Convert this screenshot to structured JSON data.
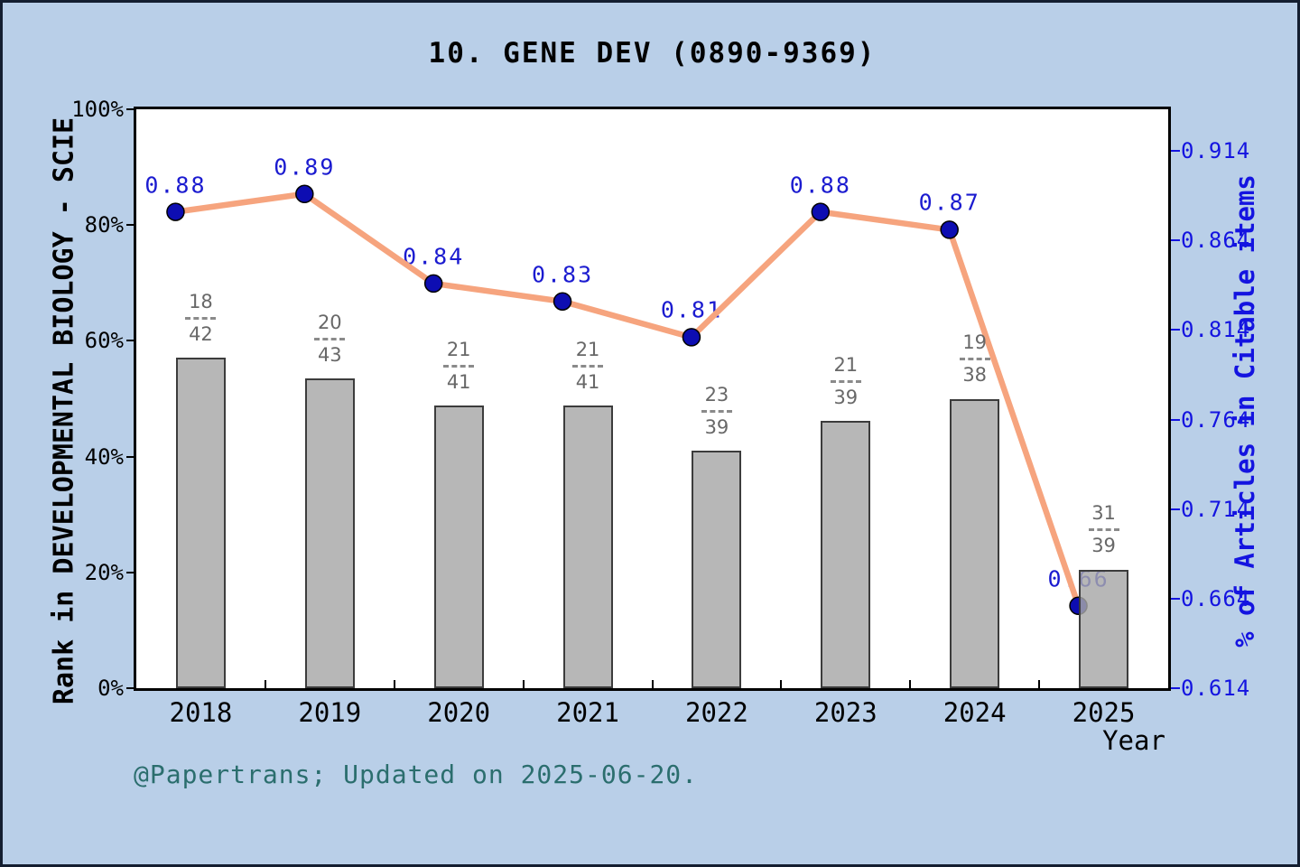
{
  "title": "10. GENE DEV (0890-9369)",
  "footer_credit": "@Papertrans; Updated on 2025-06-20.",
  "colors": {
    "background": "#b9cfe8",
    "outer_border": "#141e30",
    "plot_background": "#ffffff",
    "bar_fill": "#b0b0b0",
    "bar_border": "#3c3c3c",
    "line": "#f6a47e",
    "marker": "#0d0db2",
    "marker_edge": "#000000",
    "point_label_text": "#1b1bd0",
    "right_axis_text": "#1414e0",
    "fraction_text": "#686868",
    "footer_text": "#2b6e6e",
    "title_text": "#000000"
  },
  "chart_data": {
    "type": "bar",
    "subtype": "bar-line-combo",
    "title": "10. GENE DEV (0890-9369)",
    "categories": [
      "2018",
      "2019",
      "2020",
      "2021",
      "2022",
      "2023",
      "2024",
      "2025"
    ],
    "series": [
      {
        "name": "Rank in DEVELOPMENTAL BIOLOGY - SCIE",
        "type": "bar",
        "axis": "left",
        "values_percent": [
          57.14,
          53.49,
          48.78,
          48.78,
          41.03,
          46.15,
          50.0,
          20.51
        ],
        "fraction_labels": [
          {
            "numerator": "18",
            "denominator": "42"
          },
          {
            "numerator": "20",
            "denominator": "43"
          },
          {
            "numerator": "21",
            "denominator": "41"
          },
          {
            "numerator": "21",
            "denominator": "41"
          },
          {
            "numerator": "23",
            "denominator": "39"
          },
          {
            "numerator": "21",
            "denominator": "39"
          },
          {
            "numerator": "19",
            "denominator": "38"
          },
          {
            "numerator": "31",
            "denominator": "39"
          }
        ]
      },
      {
        "name": "% of Articles in Citable items",
        "type": "line",
        "axis": "right",
        "values": [
          0.88,
          0.89,
          0.84,
          0.83,
          0.81,
          0.88,
          0.87,
          0.66
        ],
        "point_labels": [
          "0.88",
          "0.89",
          "0.84",
          "0.83",
          "0.81",
          "0.88",
          "0.87",
          "0.66"
        ]
      }
    ],
    "left_axis": {
      "label": "Rank in DEVELOPMENTAL BIOLOGY - SCIE",
      "ticks": [
        "0%",
        "20%",
        "40%",
        "60%",
        "80%",
        "100%"
      ],
      "min": 0,
      "max": 100
    },
    "right_axis": {
      "label": "% of Articles in Citable items",
      "ticks": [
        "0.614",
        "0.664",
        "0.714",
        "0.764",
        "0.814",
        "0.864",
        "0.914"
      ],
      "min": 0.614,
      "max": 0.9373
    },
    "x_axis": {
      "label": "Year",
      "ticks": [
        "2018",
        "2019",
        "2020",
        "2021",
        "2022",
        "2023",
        "2024",
        "2025"
      ]
    },
    "grid": false,
    "legend": "none"
  }
}
